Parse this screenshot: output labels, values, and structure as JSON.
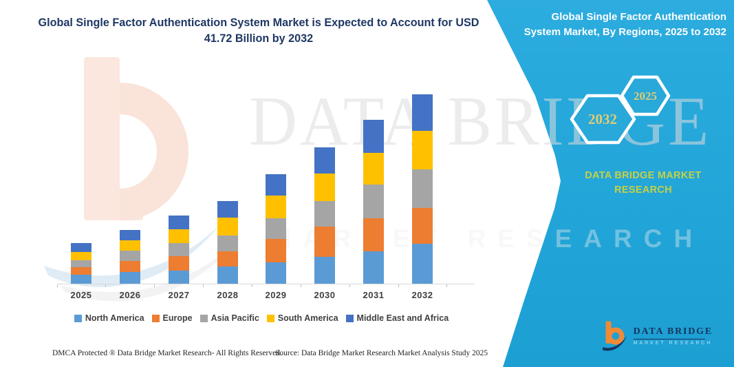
{
  "header": {
    "title": "Global Single Factor Authentication System Market is Expected to Account for USD 41.72 Billion by 2032"
  },
  "chart_data": {
    "type": "bar",
    "subtype": "stacked-column",
    "title": "Global Single Factor Authentication System Market is Expected to Account for USD 41.72 Billion by 2032",
    "unit": "USD Billion",
    "categories": [
      "2025",
      "2026",
      "2027",
      "2028",
      "2029",
      "2030",
      "2031",
      "2032"
    ],
    "series": [
      {
        "name": "North America",
        "color": "#5B9BD5",
        "values": [
          2.0,
          2.5,
          2.9,
          3.8,
          4.7,
          5.9,
          7.1,
          8.8
        ]
      },
      {
        "name": "Europe",
        "color": "#ED7D31",
        "values": [
          1.7,
          2.4,
          3.2,
          3.4,
          5.2,
          6.7,
          7.3,
          7.9
        ]
      },
      {
        "name": "Asia Pacific",
        "color": "#A5A5A5",
        "values": [
          1.5,
          2.3,
          2.9,
          3.5,
          4.6,
          5.6,
          7.4,
          8.5
        ]
      },
      {
        "name": "South America",
        "color": "#FFC000",
        "values": [
          1.8,
          2.3,
          3.0,
          3.9,
          5.0,
          6.1,
          7.0,
          8.5
        ]
      },
      {
        "name": "Middle East and Africa",
        "color": "#4472C4",
        "values": [
          2.0,
          2.3,
          3.0,
          3.6,
          4.7,
          5.8,
          7.3,
          8.0
        ]
      }
    ],
    "annotated_total_2032": 41.72,
    "xlabel": "",
    "ylabel": "",
    "value_axis_visible": false,
    "gridlines": false,
    "legend_position": "bottom"
  },
  "side_panel": {
    "title": "Global Single Factor Authentication System Market, By Regions, 2025 to 2032",
    "hexagons": [
      {
        "label": "2032"
      },
      {
        "label": "2025"
      }
    ],
    "brand_text": "DATA BRIDGE MARKET RESEARCH"
  },
  "watermark": {
    "brand": "DATA BRIDGE",
    "sub": "MARKET RESEARCH"
  },
  "logo": {
    "name": "DATA BRIDGE",
    "sub": "MARKET RESEARCH"
  },
  "footer": {
    "dmca": "DMCA Protected ® Data Bridge Market Research-  All Rights Reserved.",
    "source": "Source: Data Bridge Market Research  Market Analysis Study 2025"
  },
  "colors": {
    "panel_teal": "#29A8DA",
    "title_navy": "#1F3864",
    "axis_text": "#404040",
    "hexagon_label": "#DCCD74",
    "brand_yellow_green": "#C6D145",
    "logo_navy": "#16355E",
    "logo_orange": "#F08A37",
    "axis_line": "#D9D9D9"
  }
}
